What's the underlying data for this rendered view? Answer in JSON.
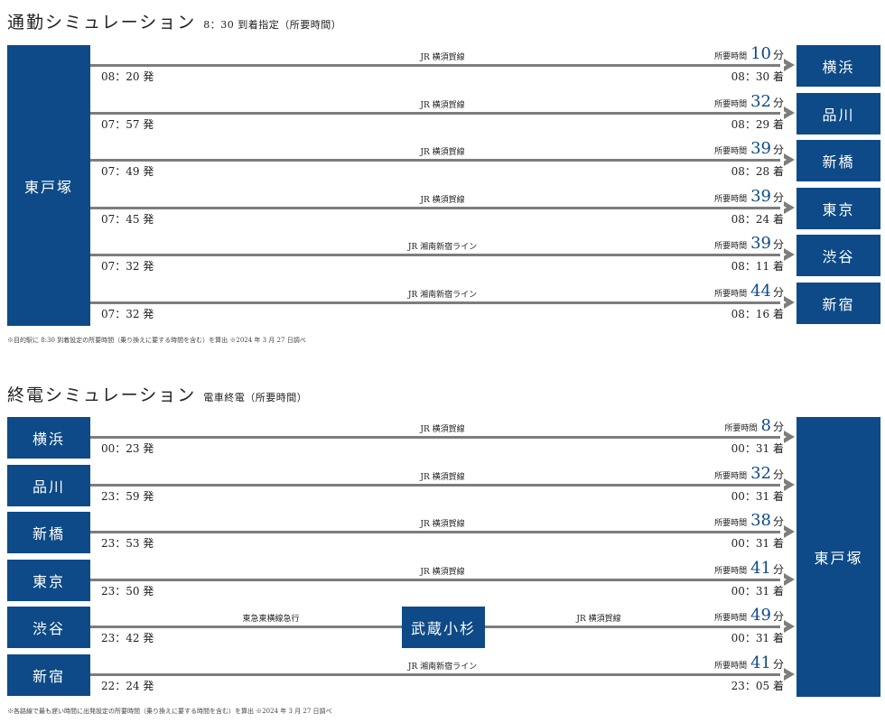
{
  "commute": {
    "title": "通勤シミュレーション",
    "subtitle": "8：30 到着指定（所要時間）",
    "origin": "東戸塚",
    "duration_label": "所要時間",
    "minute_unit": "分",
    "rows": [
      {
        "dest": "横浜",
        "line": "JR 横須賀線",
        "minutes": "10",
        "depart": "08：20 発",
        "arrive": "08：30 着"
      },
      {
        "dest": "品川",
        "line": "JR 横須賀線",
        "minutes": "32",
        "depart": "07：57 発",
        "arrive": "08：29 着"
      },
      {
        "dest": "新橋",
        "line": "JR 横須賀線",
        "minutes": "39",
        "depart": "07：49 発",
        "arrive": "08：28 着"
      },
      {
        "dest": "東京",
        "line": "JR 横須賀線",
        "minutes": "39",
        "depart": "07：45 発",
        "arrive": "08：24 着"
      },
      {
        "dest": "渋谷",
        "line": "JR 湘南新宿ライン",
        "minutes": "39",
        "depart": "07：32 発",
        "arrive": "08：11 着"
      },
      {
        "dest": "新宿",
        "line": "JR 湘南新宿ライン",
        "minutes": "44",
        "depart": "07：32 発",
        "arrive": "08：16 着"
      }
    ],
    "note": "※目的駅に 8:30 到着設定の所要時間（乗り換えに要する時間を含む）を算出 ※2024 年 3 月 27 日調べ"
  },
  "last_train": {
    "title": "終電シミュレーション",
    "subtitle": "電車終電（所要時間）",
    "destination": "東戸塚",
    "duration_label": "所要時間",
    "minute_unit": "分",
    "rows": [
      {
        "origin": "横浜",
        "line": "JR 横須賀線",
        "minutes": "8",
        "depart": "00：23 発",
        "arrive": "00：31 着"
      },
      {
        "origin": "品川",
        "line": "JR 横須賀線",
        "minutes": "32",
        "depart": "23：59 発",
        "arrive": "00：31 着"
      },
      {
        "origin": "新橋",
        "line": "JR 横須賀線",
        "minutes": "38",
        "depart": "23：53 発",
        "arrive": "00：31 着"
      },
      {
        "origin": "東京",
        "line": "JR 横須賀線",
        "minutes": "41",
        "depart": "23：50 発",
        "arrive": "00：31 着"
      },
      {
        "origin": "渋谷",
        "line": "JR 横須賀線",
        "first_line": "東急東横線急行",
        "transfer": "武蔵小杉",
        "minutes": "49",
        "depart": "23：42 発",
        "arrive": "00：31 着"
      },
      {
        "origin": "新宿",
        "line": "JR 湘南新宿ライン",
        "minutes": "41",
        "depart": "22：24 発",
        "arrive": "23：05 着"
      }
    ],
    "note": "※各路線で最も遅い時間に出発設定の所要時間（乗り換えに要する時間を含む）を算出 ※2024 年 3 月 27 日調べ"
  },
  "colors": {
    "accent": "#0d4a87",
    "line": "#7d7d7d"
  }
}
